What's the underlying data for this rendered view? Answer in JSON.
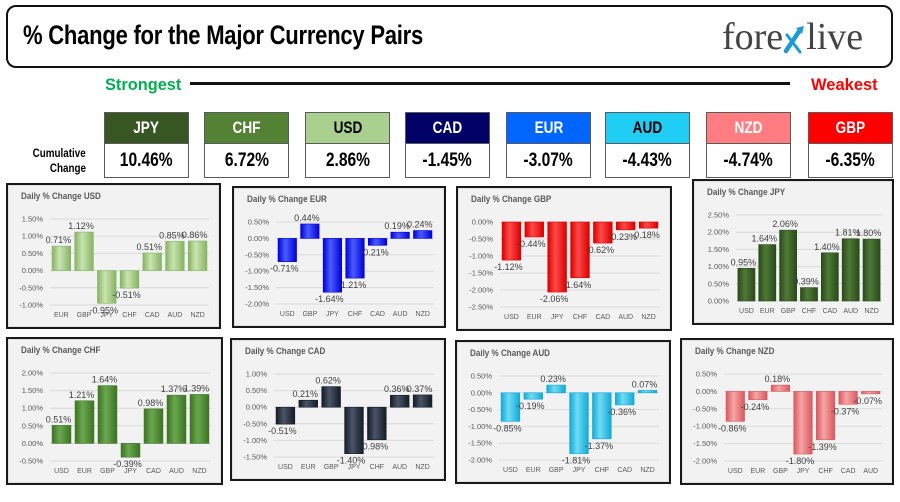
{
  "header": {
    "title": "% Change for the Major Currency Pairs",
    "logo": {
      "left": "fore",
      "right": "live",
      "mark_color": "#1b9bd7",
      "text_color": "#444444"
    }
  },
  "scale": {
    "strongest_label": "Strongest",
    "weakest_label": "Weakest",
    "strongest_color": "#00b050",
    "weakest_color": "#ff0000"
  },
  "cumulative": {
    "label_line1": "Cumulative",
    "label_line2": "Change",
    "items": [
      {
        "currency": "JPY",
        "value": "10.46%",
        "color": "#375623",
        "text_color": "#ffffff"
      },
      {
        "currency": "CHF",
        "value": "6.72%",
        "color": "#548235",
        "text_color": "#ffffff"
      },
      {
        "currency": "USD",
        "value": "2.86%",
        "color": "#a9d08e",
        "text_color": "#000000"
      },
      {
        "currency": "CAD",
        "value": "-1.45%",
        "color": "#000066",
        "text_color": "#ffffff"
      },
      {
        "currency": "EUR",
        "value": "-3.07%",
        "color": "#0066ff",
        "text_color": "#ffffff"
      },
      {
        "currency": "AUD",
        "value": "-4.43%",
        "color": "#1fcdf5",
        "text_color": "#000000"
      },
      {
        "currency": "NZD",
        "value": "-4.74%",
        "color": "#ff7c80",
        "text_color": "#ffffff"
      },
      {
        "currency": "GBP",
        "value": "-6.35%",
        "color": "#ff0000",
        "text_color": "#ffffff"
      }
    ]
  },
  "chart_data": [
    {
      "type": "bar",
      "title": "Daily % Change USD",
      "categories": [
        "EUR",
        "GBP",
        "JPY",
        "CHF",
        "CAD",
        "AUD",
        "NZD"
      ],
      "values": [
        0.71,
        1.12,
        -0.95,
        -0.51,
        0.51,
        0.85,
        0.86
      ],
      "data_labels": [
        "0.71%",
        "1.12%",
        "-0.95%",
        "-0.51%",
        "0.51%",
        "0.85%",
        "0.86%"
      ],
      "ylim": [
        -1.0,
        1.5
      ],
      "ystep": 0.5,
      "yticks": [
        "1.50%",
        "1.00%",
        "0.50%",
        "0.00%",
        "-0.50%",
        "-1.00%"
      ],
      "xlabel": "",
      "ylabel": "",
      "grid": true,
      "bar_color": "#86b363",
      "bar_highlight": "#c9e4b0"
    },
    {
      "type": "bar",
      "title": "Daily % Change EUR",
      "categories": [
        "USD",
        "GBP",
        "JPY",
        "CHF",
        "CAD",
        "AUD",
        "NZD"
      ],
      "values": [
        -0.71,
        0.44,
        -1.64,
        -1.21,
        -0.21,
        0.19,
        0.24
      ],
      "data_labels": [
        "-0.71%",
        "0.44%",
        "-1.64%",
        "-1.21%",
        "-0.21%",
        "0.19%",
        "0.24%"
      ],
      "ylim": [
        -2.0,
        0.5
      ],
      "ystep": 0.5,
      "yticks": [
        "0.50%",
        "0.00%",
        "-0.50%",
        "-1.00%",
        "-1.50%",
        "-2.00%"
      ],
      "xlabel": "",
      "ylabel": "",
      "grid": true,
      "bar_color": "#0000d9",
      "bar_highlight": "#4a5cff"
    },
    {
      "type": "bar",
      "title": "Daily % Change GBP",
      "categories": [
        "USD",
        "EUR",
        "JPY",
        "CHF",
        "CAD",
        "AUD",
        "NZD"
      ],
      "values": [
        -1.12,
        -0.44,
        -2.06,
        -1.64,
        -0.62,
        -0.23,
        -0.18
      ],
      "data_labels": [
        "-1.12%",
        "-0.44%",
        "-2.06%",
        "-1.64%",
        "-0.62%",
        "-0.23%",
        "-0.18%"
      ],
      "ylim": [
        -2.5,
        0.0
      ],
      "ystep": 0.5,
      "yticks": [
        "0.00%",
        "-0.50%",
        "-1.00%",
        "-1.50%",
        "-2.00%",
        "-2.50%"
      ],
      "xlabel": "",
      "ylabel": "",
      "grid": true,
      "bar_color": "#d90000",
      "bar_highlight": "#ff4a4a"
    },
    {
      "type": "bar",
      "title": "Daily % Change JPY",
      "categories": [
        "USD",
        "EUR",
        "GBP",
        "CHF",
        "CAD",
        "AUD",
        "NZD"
      ],
      "values": [
        0.95,
        1.64,
        2.06,
        0.39,
        1.4,
        1.81,
        1.8
      ],
      "data_labels": [
        "0.95%",
        "1.64%",
        "2.06%",
        "0.39%",
        "1.40%",
        "1.81%",
        "1.80%"
      ],
      "ylim": [
        0.0,
        2.5
      ],
      "ystep": 0.5,
      "yticks": [
        "2.50%",
        "2.00%",
        "1.50%",
        "1.00%",
        "0.50%",
        "0.00%"
      ],
      "xlabel": "",
      "ylabel": "",
      "grid": true,
      "bar_color": "#2a4a1c",
      "bar_highlight": "#4f7a35"
    },
    {
      "type": "bar",
      "title": "Daily % Change CHF",
      "categories": [
        "USD",
        "EUR",
        "GBP",
        "JPY",
        "CAD",
        "AUD",
        "NZD"
      ],
      "values": [
        0.51,
        1.21,
        1.64,
        -0.39,
        0.98,
        1.37,
        1.39
      ],
      "data_labels": [
        "0.51%",
        "1.21%",
        "1.64%",
        "-0.39%",
        "0.98%",
        "1.37%",
        "1.39%"
      ],
      "ylim": [
        -0.5,
        2.0
      ],
      "ystep": 0.5,
      "yticks": [
        "2.00%",
        "1.50%",
        "1.00%",
        "0.50%",
        "0.00%",
        "-0.50%"
      ],
      "xlabel": "",
      "ylabel": "",
      "grid": true,
      "bar_color": "#3d7323",
      "bar_highlight": "#6aa84f"
    },
    {
      "type": "bar",
      "title": "Daily % Change CAD",
      "categories": [
        "USD",
        "EUR",
        "GBP",
        "JPY",
        "CHF",
        "AUD",
        "NZD"
      ],
      "values": [
        -0.51,
        0.21,
        0.62,
        -1.4,
        -0.98,
        0.36,
        0.37
      ],
      "data_labels": [
        "-0.51%",
        "0.21%",
        "0.62%",
        "-1.40%",
        "-0.98%",
        "0.36%",
        "0.37%"
      ],
      "ylim": [
        -1.5,
        1.0
      ],
      "ystep": 0.5,
      "yticks": [
        "1.00%",
        "0.50%",
        "0.00%",
        "-0.50%",
        "-1.00%",
        "-1.50%"
      ],
      "xlabel": "",
      "ylabel": "",
      "grid": true,
      "bar_color": "#141b28",
      "bar_highlight": "#4a5568"
    },
    {
      "type": "bar",
      "title": "Daily % Change AUD",
      "categories": [
        "USD",
        "EUR",
        "GBP",
        "JPY",
        "CHF",
        "CAD",
        "NZD"
      ],
      "values": [
        -0.85,
        -0.19,
        0.23,
        -1.81,
        -1.37,
        -0.36,
        0.07
      ],
      "data_labels": [
        "-0.85%",
        "-0.19%",
        "0.23%",
        "-1.81%",
        "-1.37%",
        "-0.36%",
        "0.07%"
      ],
      "ylim": [
        -2.0,
        0.5
      ],
      "ystep": 0.5,
      "yticks": [
        "0.50%",
        "0.00%",
        "-0.50%",
        "-1.00%",
        "-1.50%",
        "-2.00%"
      ],
      "xlabel": "",
      "ylabel": "",
      "grid": true,
      "bar_color": "#12a9d6",
      "bar_highlight": "#6fdcf5"
    },
    {
      "type": "bar",
      "title": "Daily % Change NZD",
      "categories": [
        "USD",
        "EUR",
        "GBP",
        "JPY",
        "CHF",
        "CAD",
        "AUD"
      ],
      "values": [
        -0.86,
        -0.24,
        0.18,
        -1.8,
        -1.39,
        -0.37,
        -0.07
      ],
      "data_labels": [
        "-0.86%",
        "-0.24%",
        "0.18%",
        "-1.80%",
        "-1.39%",
        "-0.37%",
        "-0.07%"
      ],
      "ylim": [
        -2.0,
        0.5
      ],
      "ystep": 0.5,
      "yticks": [
        "0.50%",
        "0.00%",
        "-0.50%",
        "-1.00%",
        "-1.50%",
        "-2.00%"
      ],
      "xlabel": "",
      "ylabel": "",
      "grid": true,
      "bar_color": "#d9585d",
      "bar_highlight": "#f7a5a7"
    }
  ]
}
